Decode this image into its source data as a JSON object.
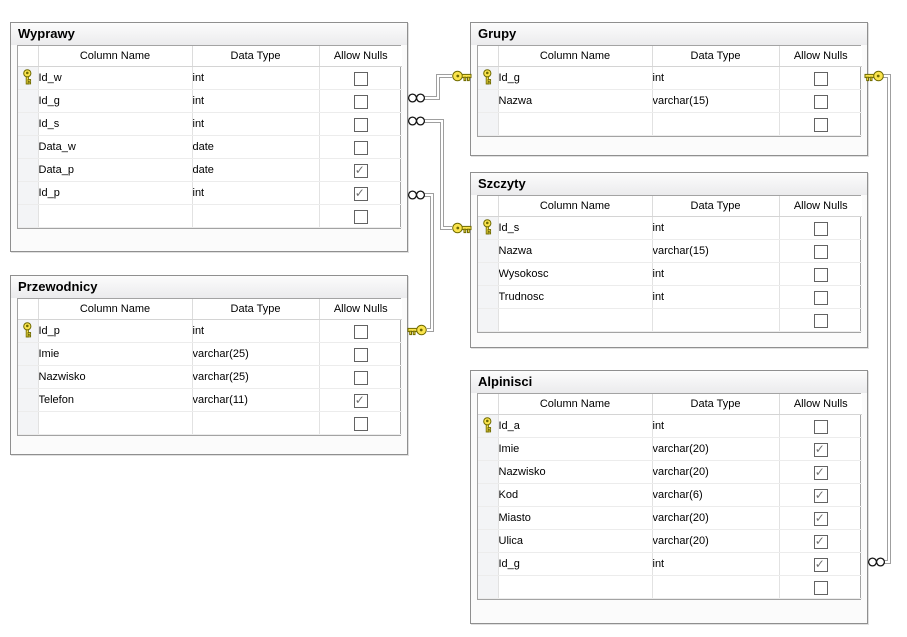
{
  "diagram": {
    "grid_headers": [
      "Column Name",
      "Data Type",
      "Allow Nulls"
    ],
    "colors": {
      "key_icon": "#fbe44d",
      "connector": "#9f9f9f",
      "title_bar": "#ebebed",
      "checkbox_check": "#707070"
    },
    "tables": [
      {
        "title": "Wyprawy",
        "rows": [
          {
            "pk": true,
            "name": "Id_w",
            "type": "int",
            "allow_null": false
          },
          {
            "pk": false,
            "name": "Id_g",
            "type": "int",
            "allow_null": false
          },
          {
            "pk": false,
            "name": "Id_s",
            "type": "int",
            "allow_null": false
          },
          {
            "pk": false,
            "name": "Data_w",
            "type": "date",
            "allow_null": false
          },
          {
            "pk": false,
            "name": "Data_p",
            "type": "date",
            "allow_null": true
          },
          {
            "pk": false,
            "name": "Id_p",
            "type": "int",
            "allow_null": true
          },
          {
            "pk": false,
            "name": "",
            "type": "",
            "allow_null": false
          }
        ]
      },
      {
        "title": "Przewodnicy",
        "rows": [
          {
            "pk": true,
            "name": "Id_p",
            "type": "int",
            "allow_null": false
          },
          {
            "pk": false,
            "name": "Imie",
            "type": "varchar(25)",
            "allow_null": false
          },
          {
            "pk": false,
            "name": "Nazwisko",
            "type": "varchar(25)",
            "allow_null": false
          },
          {
            "pk": false,
            "name": "Telefon",
            "type": "varchar(11)",
            "allow_null": true
          },
          {
            "pk": false,
            "name": "",
            "type": "",
            "allow_null": false
          }
        ]
      },
      {
        "title": "Grupy",
        "rows": [
          {
            "pk": true,
            "name": "Id_g",
            "type": "int",
            "allow_null": false
          },
          {
            "pk": false,
            "name": "Nazwa",
            "type": "varchar(15)",
            "allow_null": false
          },
          {
            "pk": false,
            "name": "",
            "type": "",
            "allow_null": false
          }
        ]
      },
      {
        "title": "Szczyty",
        "rows": [
          {
            "pk": true,
            "name": "Id_s",
            "type": "int",
            "allow_null": false
          },
          {
            "pk": false,
            "name": "Nazwa",
            "type": "varchar(15)",
            "allow_null": false
          },
          {
            "pk": false,
            "name": "Wysokosc",
            "type": "int",
            "allow_null": false
          },
          {
            "pk": false,
            "name": "Trudnosc",
            "type": "int",
            "allow_null": false
          },
          {
            "pk": false,
            "name": "",
            "type": "",
            "allow_null": false
          }
        ]
      },
      {
        "title": "Alpinisci",
        "rows": [
          {
            "pk": true,
            "name": "Id_a",
            "type": "int",
            "allow_null": false
          },
          {
            "pk": false,
            "name": "Imie",
            "type": "varchar(20)",
            "allow_null": true
          },
          {
            "pk": false,
            "name": "Nazwisko",
            "type": "varchar(20)",
            "allow_null": true
          },
          {
            "pk": false,
            "name": "Kod",
            "type": "varchar(6)",
            "allow_null": true
          },
          {
            "pk": false,
            "name": "Miasto",
            "type": "varchar(20)",
            "allow_null": true
          },
          {
            "pk": false,
            "name": "Ulica",
            "type": "varchar(20)",
            "allow_null": true
          },
          {
            "pk": false,
            "name": "Id_g",
            "type": "int",
            "allow_null": true
          },
          {
            "pk": false,
            "name": "",
            "type": "",
            "allow_null": false
          }
        ]
      }
    ],
    "relationships": [
      {
        "pk_table": "Grupy",
        "pk_column": "Id_g",
        "fk_table": "Wyprawy",
        "fk_column": "Id_g"
      },
      {
        "pk_table": "Szczyty",
        "pk_column": "Id_s",
        "fk_table": "Wyprawy",
        "fk_column": "Id_s"
      },
      {
        "pk_table": "Przewodnicy",
        "pk_column": "Id_p",
        "fk_table": "Wyprawy",
        "fk_column": "Id_p"
      },
      {
        "pk_table": "Grupy",
        "pk_column": "Id_g",
        "fk_table": "Alpinisci",
        "fk_column": "Id_g"
      }
    ]
  }
}
